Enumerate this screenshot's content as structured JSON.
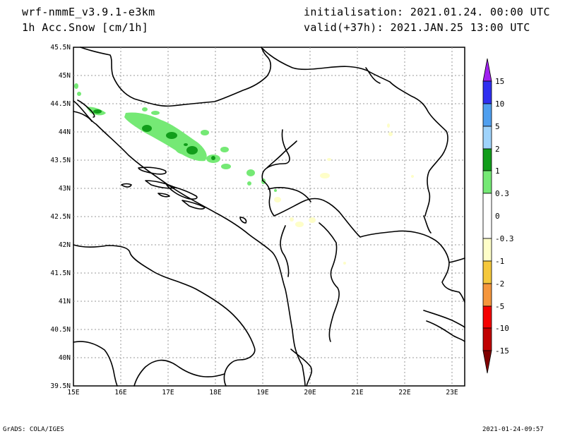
{
  "header": {
    "model": "wrf-nmmE_v3.9.1-e3km",
    "field": "1h Acc.Snow [cm/1h]",
    "init": "initialisation: 2021.01.24.  00:00 UTC",
    "valid": "valid(+37h): 2021.JAN.25 13:00 UTC"
  },
  "axes": {
    "lat_labels": [
      "45.5N",
      "45N",
      "44.5N",
      "44N",
      "43.5N",
      "43N",
      "42.5N",
      "42N",
      "41.5N",
      "41N",
      "40.5N",
      "40N",
      "39.5N"
    ],
    "lon_labels": [
      "15E",
      "16E",
      "17E",
      "18E",
      "19E",
      "20E",
      "21E",
      "22E",
      "23E"
    ],
    "lat_range": [
      39.5,
      45.5
    ],
    "lon_range": [
      15.0,
      23.25
    ]
  },
  "legend": {
    "labels": [
      "15",
      "10",
      "5",
      "2",
      "1",
      "0.3",
      "0",
      "-0.3",
      "-1",
      "-2",
      "-5",
      "-10",
      "-15"
    ],
    "colors": [
      "#a020f0",
      "#2f2ff0",
      "#4f9fef",
      "#9fd3fb",
      "#119d1a",
      "#75e975",
      "#ffffff",
      "#fefec8",
      "#f5c83c",
      "#f5963c",
      "#f50000",
      "#c00000",
      "#800000"
    ]
  },
  "footer": {
    "left": "GrADS: COLA/IGES",
    "right": "2021-01-24-09:57"
  }
}
